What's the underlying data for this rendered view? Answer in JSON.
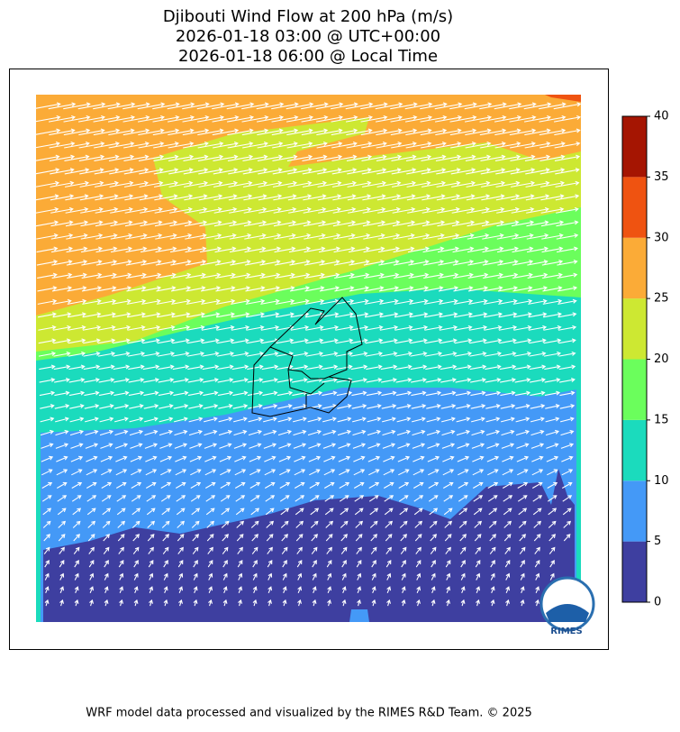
{
  "title": [
    "Djibouti Wind Flow at 200 hPa (m/s)",
    "2026-01-18 03:00 @ UTC+00:00",
    "2026-01-18 06:00 @ Local Time"
  ],
  "colorbar": {
    "ticks": [
      0,
      5,
      10,
      15,
      20,
      25,
      30,
      35,
      40
    ],
    "colors": [
      "#3e3fa0",
      "#4499f7",
      "#1bdbbd",
      "#6bfe5c",
      "#cde832",
      "#fbab37",
      "#ef5311",
      "#a51502"
    ]
  },
  "logo": "RIMES",
  "footer": "WRF model data processed and visualized by the RIMES R&D Team. © 2025"
}
